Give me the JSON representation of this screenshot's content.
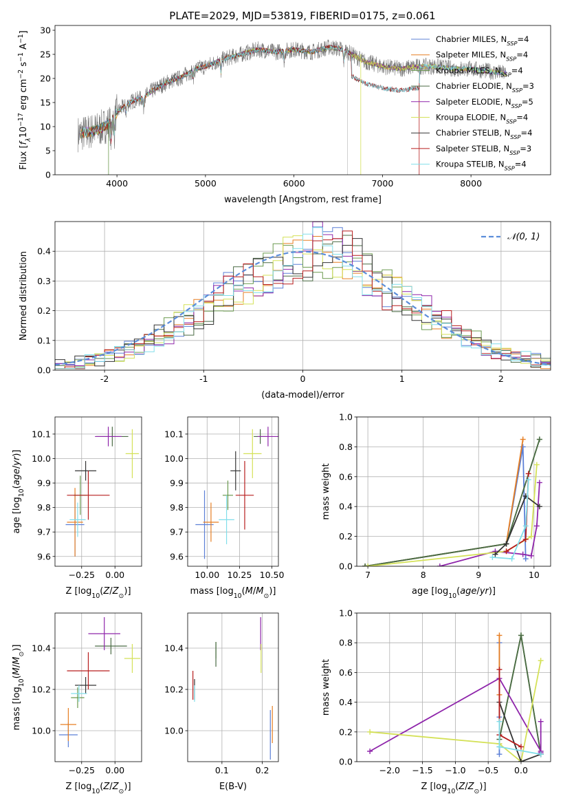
{
  "colors": {
    "chabrier_miles": "#5b7fd6",
    "salpeter_miles": "#e67e22",
    "kroupa_miles": "#6a994e",
    "chabrier_elodie": "#4a6a44",
    "salpeter_elodie": "#8e24aa",
    "kroupa_elodie": "#d4e157",
    "chabrier_stelib": "#333333",
    "salpeter_stelib": "#b71c1c",
    "kroupa_stelib": "#80deea",
    "data_spectrum": "#777777",
    "gaussian": "#5b8dd9",
    "grid": "#b0b0b0"
  },
  "chart_data": [
    {
      "id": "spectrum",
      "type": "line",
      "title": "PLATE=2029, MJD=53819, FIBERID=0175, z=0.061",
      "xlabel": "wavelength [Angstrom, rest frame]",
      "ylabel": "Flux [f_λ 10^-17 erg cm^-2 s^-1 A^-1]",
      "xlim": [
        3300,
        8900
      ],
      "ylim": [
        0,
        31
      ],
      "xticks": [
        4000,
        5000,
        6000,
        7000,
        8000
      ],
      "yticks": [
        0,
        5,
        10,
        15,
        20,
        25,
        30
      ],
      "grid": false,
      "legend_position": "upper right",
      "legend": [
        {
          "key": "chabrier_miles",
          "label": "Chabrier MILES, N",
          "sub": "SSP",
          "eq": "=4"
        },
        {
          "key": "salpeter_miles",
          "label": "Salpeter MILES, N",
          "sub": "SSP",
          "eq": "=4"
        },
        {
          "key": "kroupa_miles",
          "label": "Kroupa MILES, N",
          "sub": "SSP",
          "eq": "=4"
        },
        {
          "key": "chabrier_elodie",
          "label": "Chabrier ELODIE, N",
          "sub": "SSP",
          "eq": "=3"
        },
        {
          "key": "salpeter_elodie",
          "label": "Salpeter ELODIE, N",
          "sub": "SSP",
          "eq": "=5"
        },
        {
          "key": "kroupa_elodie",
          "label": "Kroupa ELODIE, N",
          "sub": "SSP",
          "eq": "=4"
        },
        {
          "key": "chabrier_stelib",
          "label": "Chabrier STELIB, N",
          "sub": "SSP",
          "eq": "=4"
        },
        {
          "key": "salpeter_stelib",
          "label": "Salpeter STELIB, N",
          "sub": "SSP",
          "eq": "=3"
        },
        {
          "key": "kroupa_stelib",
          "label": "Kroupa STELIB, N",
          "sub": "SSP",
          "eq": "=4"
        }
      ],
      "continuum": {
        "wavelength": [
          3580,
          3700,
          3800,
          3900,
          4000,
          4100,
          4200,
          4300,
          4400,
          4500,
          4600,
          4700,
          4800,
          4900,
          5000,
          5200,
          5400,
          5600,
          5800,
          6000,
          6200,
          6400,
          6560,
          6700,
          6800,
          7000,
          7200,
          7400,
          7600,
          7800,
          8000,
          8200,
          8400
        ],
        "flux": [
          8.5,
          9.0,
          9.5,
          10.5,
          13.0,
          14.5,
          15.5,
          16.0,
          17.5,
          18.5,
          19.5,
          20.0,
          21.0,
          22.0,
          22.5,
          24.0,
          25.0,
          26.0,
          25.5,
          26.0,
          25.5,
          26.5,
          26.0,
          24.5,
          23.5,
          22.5,
          22.0,
          22.5,
          22.5,
          22.0,
          22.0,
          21.5,
          21.0
        ]
      },
      "stelib_cutoff": {
        "start": 6650,
        "end": 7420,
        "level_after": 19.5
      }
    },
    {
      "id": "residuals",
      "type": "step",
      "xlabel": "(data-model)/error",
      "ylabel": "Normed distribution",
      "xlim": [
        -2.5,
        2.5
      ],
      "ylim": [
        0,
        0.5
      ],
      "xticks": [
        -2,
        -1,
        0,
        1,
        2
      ],
      "yticks": [
        0.0,
        0.1,
        0.2,
        0.3,
        0.4
      ],
      "grid": true,
      "legend_position": "upper right",
      "gaussian_label": "𝒩(0, 1)",
      "bin_width": 0.1
    },
    {
      "id": "age_vs_z",
      "type": "errorbar",
      "xlabel": "Z [log10(Z/Z⊙)]",
      "ylabel": "age [log10(age/yr)]",
      "xlim": [
        -0.45,
        0.2
      ],
      "ylim": [
        9.56,
        10.17
      ],
      "xticks": [
        -0.25,
        0.0
      ],
      "xticklabels": [
        "−0.25",
        "0.00"
      ],
      "yticks": [
        9.6,
        9.7,
        9.8,
        9.9,
        10.0,
        10.1
      ],
      "grid": true,
      "points": [
        {
          "key": "chabrier_miles",
          "x": -0.3,
          "xerr": 0.07,
          "y": 9.73,
          "yerr": 0.13
        },
        {
          "key": "salpeter_miles",
          "x": -0.3,
          "xerr": 0.06,
          "y": 9.74,
          "yerr": 0.14
        },
        {
          "key": "kroupa_miles",
          "x": -0.26,
          "xerr": 0.05,
          "y": 9.85,
          "yerr": 0.08
        },
        {
          "key": "chabrier_elodie",
          "x": -0.02,
          "xerr": 0.12,
          "y": 10.09,
          "yerr": 0.04
        },
        {
          "key": "salpeter_elodie",
          "x": -0.05,
          "xerr": 0.1,
          "y": 10.09,
          "yerr": 0.04
        },
        {
          "key": "kroupa_elodie",
          "x": 0.13,
          "xerr": 0.05,
          "y": 10.02,
          "yerr": 0.1
        },
        {
          "key": "chabrier_stelib",
          "x": -0.22,
          "xerr": 0.08,
          "y": 9.95,
          "yerr": 0.04
        },
        {
          "key": "salpeter_stelib",
          "x": -0.2,
          "xerr": 0.16,
          "y": 9.85,
          "yerr": 0.1
        },
        {
          "key": "kroupa_stelib",
          "x": -0.28,
          "xerr": 0.06,
          "y": 9.75,
          "yerr": 0.07
        }
      ]
    },
    {
      "id": "age_vs_mass",
      "type": "errorbar",
      "xlabel": "mass [log10(M/M⊙)]",
      "ylabel": "",
      "xlim": [
        9.85,
        10.55
      ],
      "ylim": [
        9.56,
        10.17
      ],
      "xticks": [
        10.0,
        10.25,
        10.5
      ],
      "xticklabels": [
        "10.00",
        "10.25",
        "10.50"
      ],
      "yticks": [
        9.6,
        9.7,
        9.8,
        9.9,
        10.0,
        10.1
      ],
      "grid": true,
      "points": [
        {
          "key": "chabrier_miles",
          "x": 9.98,
          "xerr": 0.07,
          "y": 9.73,
          "yerr": 0.14
        },
        {
          "key": "salpeter_miles",
          "x": 10.03,
          "xerr": 0.06,
          "y": 9.74,
          "yerr": 0.08
        },
        {
          "key": "kroupa_miles",
          "x": 10.16,
          "xerr": 0.04,
          "y": 9.85,
          "yerr": 0.06
        },
        {
          "key": "chabrier_elodie",
          "x": 10.41,
          "xerr": 0.05,
          "y": 10.09,
          "yerr": 0.03
        },
        {
          "key": "salpeter_elodie",
          "x": 10.47,
          "xerr": 0.08,
          "y": 10.09,
          "yerr": 0.04
        },
        {
          "key": "kroupa_elodie",
          "x": 10.35,
          "xerr": 0.07,
          "y": 10.02,
          "yerr": 0.1
        },
        {
          "key": "chabrier_stelib",
          "x": 10.22,
          "xerr": 0.04,
          "y": 9.95,
          "yerr": 0.08
        },
        {
          "key": "salpeter_stelib",
          "x": 10.29,
          "xerr": 0.07,
          "y": 9.85,
          "yerr": 0.14
        },
        {
          "key": "kroupa_stelib",
          "x": 10.15,
          "xerr": 0.06,
          "y": 9.75,
          "yerr": 0.1
        }
      ]
    },
    {
      "id": "mass_weight_vs_age",
      "type": "line",
      "xlabel": "age [log10(age/yr)]",
      "ylabel": "mass weight",
      "xlim": [
        6.8,
        10.3
      ],
      "ylim": [
        0,
        1
      ],
      "xticks": [
        7,
        8,
        9,
        10
      ],
      "yticks": [
        0.0,
        0.2,
        0.4,
        0.6,
        0.8,
        1.0
      ],
      "grid": true,
      "series": [
        {
          "key": "chabrier_miles",
          "x": [
            6.95,
            9.5,
            9.8,
            9.85
          ],
          "y": [
            0.0,
            0.15,
            0.8,
            0.05
          ]
        },
        {
          "key": "salpeter_miles",
          "x": [
            6.95,
            9.5,
            9.8
          ],
          "y": [
            0.0,
            0.15,
            0.85
          ]
        },
        {
          "key": "kroupa_miles",
          "x": [
            6.95,
            9.5,
            10.1
          ],
          "y": [
            0.0,
            0.15,
            0.85
          ]
        },
        {
          "key": "chabrier_elodie",
          "x": [
            6.95,
            9.5,
            10.1
          ],
          "y": [
            0.0,
            0.15,
            0.85
          ]
        },
        {
          "key": "salpeter_elodie",
          "x": [
            8.3,
            9.3,
            9.8,
            9.95,
            10.05,
            10.1
          ],
          "y": [
            0.0,
            0.1,
            0.08,
            0.07,
            0.27,
            0.56
          ]
        },
        {
          "key": "kroupa_elodie",
          "x": [
            7.0,
            9.5,
            9.95,
            10.05
          ],
          "y": [
            0.0,
            0.1,
            0.2,
            0.68
          ]
        },
        {
          "key": "chabrier_stelib",
          "x": [
            9.3,
            9.5,
            9.85,
            10.1
          ],
          "y": [
            0.08,
            0.15,
            0.47,
            0.4
          ]
        },
        {
          "key": "salpeter_stelib",
          "x": [
            9.5,
            9.85,
            9.9
          ],
          "y": [
            0.1,
            0.18,
            0.62
          ]
        },
        {
          "key": "kroupa_stelib",
          "x": [
            9.25,
            9.6,
            9.85,
            9.9
          ],
          "y": [
            0.06,
            0.05,
            0.27,
            0.58
          ]
        }
      ]
    },
    {
      "id": "mass_vs_z",
      "type": "errorbar",
      "xlabel": "Z [log10(Z/Z⊙)]",
      "ylabel": "mass [log10(M/M⊙)]",
      "xlim": [
        -0.45,
        0.2
      ],
      "ylim": [
        9.85,
        10.57
      ],
      "xticks": [
        -0.25,
        0.0
      ],
      "xticklabels": [
        "−0.25",
        "0.00"
      ],
      "yticks": [
        10.0,
        10.2,
        10.4
      ],
      "grid": true,
      "points": [
        {
          "key": "chabrier_miles",
          "x": -0.35,
          "xerr": 0.07,
          "y": 9.98,
          "yerr": 0.06
        },
        {
          "key": "salpeter_miles",
          "x": -0.35,
          "xerr": 0.06,
          "y": 10.03,
          "yerr": 0.08
        },
        {
          "key": "kroupa_miles",
          "x": -0.28,
          "xerr": 0.05,
          "y": 10.16,
          "yerr": 0.05
        },
        {
          "key": "chabrier_elodie",
          "x": -0.03,
          "xerr": 0.12,
          "y": 10.41,
          "yerr": 0.04
        },
        {
          "key": "salpeter_elodie",
          "x": -0.08,
          "xerr": 0.12,
          "y": 10.47,
          "yerr": 0.08
        },
        {
          "key": "kroupa_elodie",
          "x": 0.13,
          "xerr": 0.06,
          "y": 10.35,
          "yerr": 0.07
        },
        {
          "key": "chabrier_stelib",
          "x": -0.22,
          "xerr": 0.08,
          "y": 10.22,
          "yerr": 0.04
        },
        {
          "key": "salpeter_stelib",
          "x": -0.2,
          "xerr": 0.16,
          "y": 10.29,
          "yerr": 0.09
        },
        {
          "key": "kroupa_stelib",
          "x": -0.27,
          "xerr": 0.06,
          "y": 10.18,
          "yerr": 0.04
        }
      ]
    },
    {
      "id": "mass_vs_ebv",
      "type": "errorbar",
      "xlabel": "E(B-V)",
      "ylabel": "",
      "xlim": [
        0.015,
        0.24
      ],
      "ylim": [
        9.85,
        10.57
      ],
      "xticks": [
        0.1,
        0.2
      ],
      "xticklabels": [
        "0.1",
        "0.2"
      ],
      "yticks": [
        10.0,
        10.2,
        10.4
      ],
      "grid": true,
      "points": [
        {
          "key": "chabrier_miles",
          "x": 0.22,
          "xerr": 0.0,
          "y": 9.98,
          "yerr": 0.12
        },
        {
          "key": "salpeter_miles",
          "x": 0.225,
          "xerr": 0.0,
          "y": 10.03,
          "yerr": 0.09
        },
        {
          "key": "kroupa_miles",
          "x": 0.085,
          "xerr": 0.0,
          "y": 10.39,
          "yerr": 0.04
        },
        {
          "key": "chabrier_elodie",
          "x": 0.085,
          "xerr": 0.0,
          "y": 10.37,
          "yerr": 0.06
        },
        {
          "key": "salpeter_elodie",
          "x": 0.196,
          "xerr": 0.0,
          "y": 10.47,
          "yerr": 0.08
        },
        {
          "key": "kroupa_elodie",
          "x": 0.197,
          "xerr": 0.0,
          "y": 10.35,
          "yerr": 0.07
        },
        {
          "key": "chabrier_stelib",
          "x": 0.032,
          "xerr": 0.0,
          "y": 10.2,
          "yerr": 0.05
        },
        {
          "key": "salpeter_stelib",
          "x": 0.028,
          "xerr": 0.0,
          "y": 10.22,
          "yerr": 0.07
        },
        {
          "key": "kroupa_stelib",
          "x": 0.032,
          "xerr": 0.0,
          "y": 10.18,
          "yerr": 0.04
        }
      ]
    },
    {
      "id": "mass_weight_vs_z",
      "type": "line",
      "xlabel": "Z [log10(Z/Z⊙)]",
      "ylabel": "mass weight",
      "xlim": [
        -2.5,
        0.45
      ],
      "ylim": [
        0,
        1
      ],
      "xticks": [
        -2.0,
        -1.5,
        -1.0,
        -0.5,
        0.0
      ],
      "xticklabels": [
        "−2.0",
        "−1.5",
        "−1.0",
        "−0.5",
        "0.0"
      ],
      "yticks": [
        0.0,
        0.2,
        0.4,
        0.6,
        0.8,
        1.0
      ],
      "grid": true,
      "series": [
        {
          "key": "chabrier_miles",
          "x": [
            -0.33,
            -0.33,
            -0.33,
            -0.33
          ],
          "y": [
            0.8,
            0.3,
            0.1,
            0.05
          ]
        },
        {
          "key": "salpeter_miles",
          "x": [
            -0.33,
            -0.33,
            -0.33
          ],
          "y": [
            0.85,
            0.45,
            0.12
          ]
        },
        {
          "key": "kroupa_miles",
          "x": [
            -0.33,
            0.0,
            0.3
          ],
          "y": [
            0.15,
            0.85,
            0.05
          ]
        },
        {
          "key": "chabrier_elodie",
          "x": [
            -0.33,
            0.0,
            0.3
          ],
          "y": [
            0.15,
            0.85,
            0.05
          ]
        },
        {
          "key": "salpeter_elodie",
          "x": [
            -2.3,
            -0.33,
            0.3,
            0.3,
            0.3
          ],
          "y": [
            0.07,
            0.56,
            0.07,
            0.27,
            0.06
          ]
        },
        {
          "key": "kroupa_elodie",
          "x": [
            -2.3,
            -0.33,
            0.0,
            0.3
          ],
          "y": [
            0.2,
            0.12,
            0.0,
            0.68
          ]
        },
        {
          "key": "chabrier_stelib",
          "x": [
            -0.33,
            0.0,
            0.3
          ],
          "y": [
            0.4,
            0.0,
            0.05
          ]
        },
        {
          "key": "salpeter_stelib",
          "x": [
            -0.33,
            -0.33,
            0.0
          ],
          "y": [
            0.62,
            0.18,
            0.1
          ]
        },
        {
          "key": "kroupa_stelib",
          "x": [
            -0.33,
            -0.33,
            0.3
          ],
          "y": [
            0.27,
            0.1,
            0.05
          ]
        }
      ]
    }
  ]
}
